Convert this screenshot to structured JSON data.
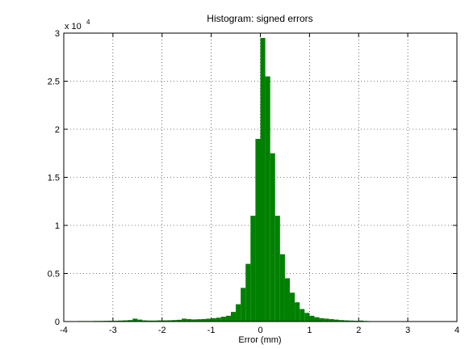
{
  "chart_data": {
    "type": "histogram",
    "title": "Histogram: signed errors",
    "x_label": "Error (mm)",
    "y_scale": {
      "base": "x 10",
      "exponent": "4"
    },
    "color": "#008000",
    "bins": [
      -4,
      -3.9,
      -3.8,
      -3.7,
      -3.6,
      -3.5,
      -3.4,
      -3.3,
      -3.2,
      -3.1,
      -3,
      -2.9,
      -2.8,
      -2.7,
      -2.6,
      -2.5,
      -2.4,
      -2.3,
      -2.2,
      -2.1,
      -2,
      -1.9,
      -1.8,
      -1.7,
      -1.6,
      -1.5,
      -1.4,
      -1.3,
      -1.2,
      -1.1,
      -1,
      -0.9,
      -0.8,
      -0.7,
      -0.6,
      -0.5,
      -0.4,
      -0.3,
      -0.2,
      -0.1,
      0,
      0.1,
      0.2,
      0.3,
      0.4,
      0.5,
      0.6,
      0.7,
      0.8,
      0.9,
      1,
      1.1,
      1.2,
      1.3,
      1.4,
      1.5,
      1.6,
      1.7,
      1.8,
      1.9,
      2,
      2.1,
      2.2,
      2.3,
      2.4,
      2.5,
      2.6,
      2.7,
      2.8,
      2.9,
      3,
      3.1,
      3.2,
      3.3,
      3.4,
      3.5,
      3.6,
      3.7,
      3.8,
      3.9,
      4
    ],
    "values": [
      0.003,
      0.004,
      0.004,
      0.005,
      0.005,
      0.005,
      0.006,
      0.006,
      0.007,
      0.008,
      0.008,
      0.01,
      0.012,
      0.015,
      0.03,
      0.02,
      0.012,
      0.01,
      0.01,
      0.012,
      0.012,
      0.013,
      0.015,
      0.018,
      0.03,
      0.025,
      0.022,
      0.024,
      0.026,
      0.03,
      0.035,
      0.04,
      0.05,
      0.06,
      0.1,
      0.18,
      0.35,
      0.6,
      1.1,
      1.9,
      2.95,
      2.55,
      1.75,
      1.1,
      0.7,
      0.45,
      0.3,
      0.2,
      0.13,
      0.09,
      0.06,
      0.045,
      0.035,
      0.03,
      0.025,
      0.02,
      0.015,
      0.012,
      0.01,
      0.008,
      0.01,
      0.006,
      0.004,
      0.003,
      0.002,
      0.002,
      0.001,
      0.001,
      0.001,
      0.001,
      0,
      0,
      0,
      0,
      0,
      0,
      0,
      0,
      0,
      0
    ],
    "xlim": [
      -4,
      4
    ],
    "ylim": [
      0,
      3
    ],
    "xticks": [
      -4,
      -3,
      -2,
      -1,
      0,
      1,
      2,
      3,
      4
    ],
    "yticks": [
      0,
      0.5,
      1,
      1.5,
      2,
      2.5,
      3
    ],
    "grid": true
  }
}
